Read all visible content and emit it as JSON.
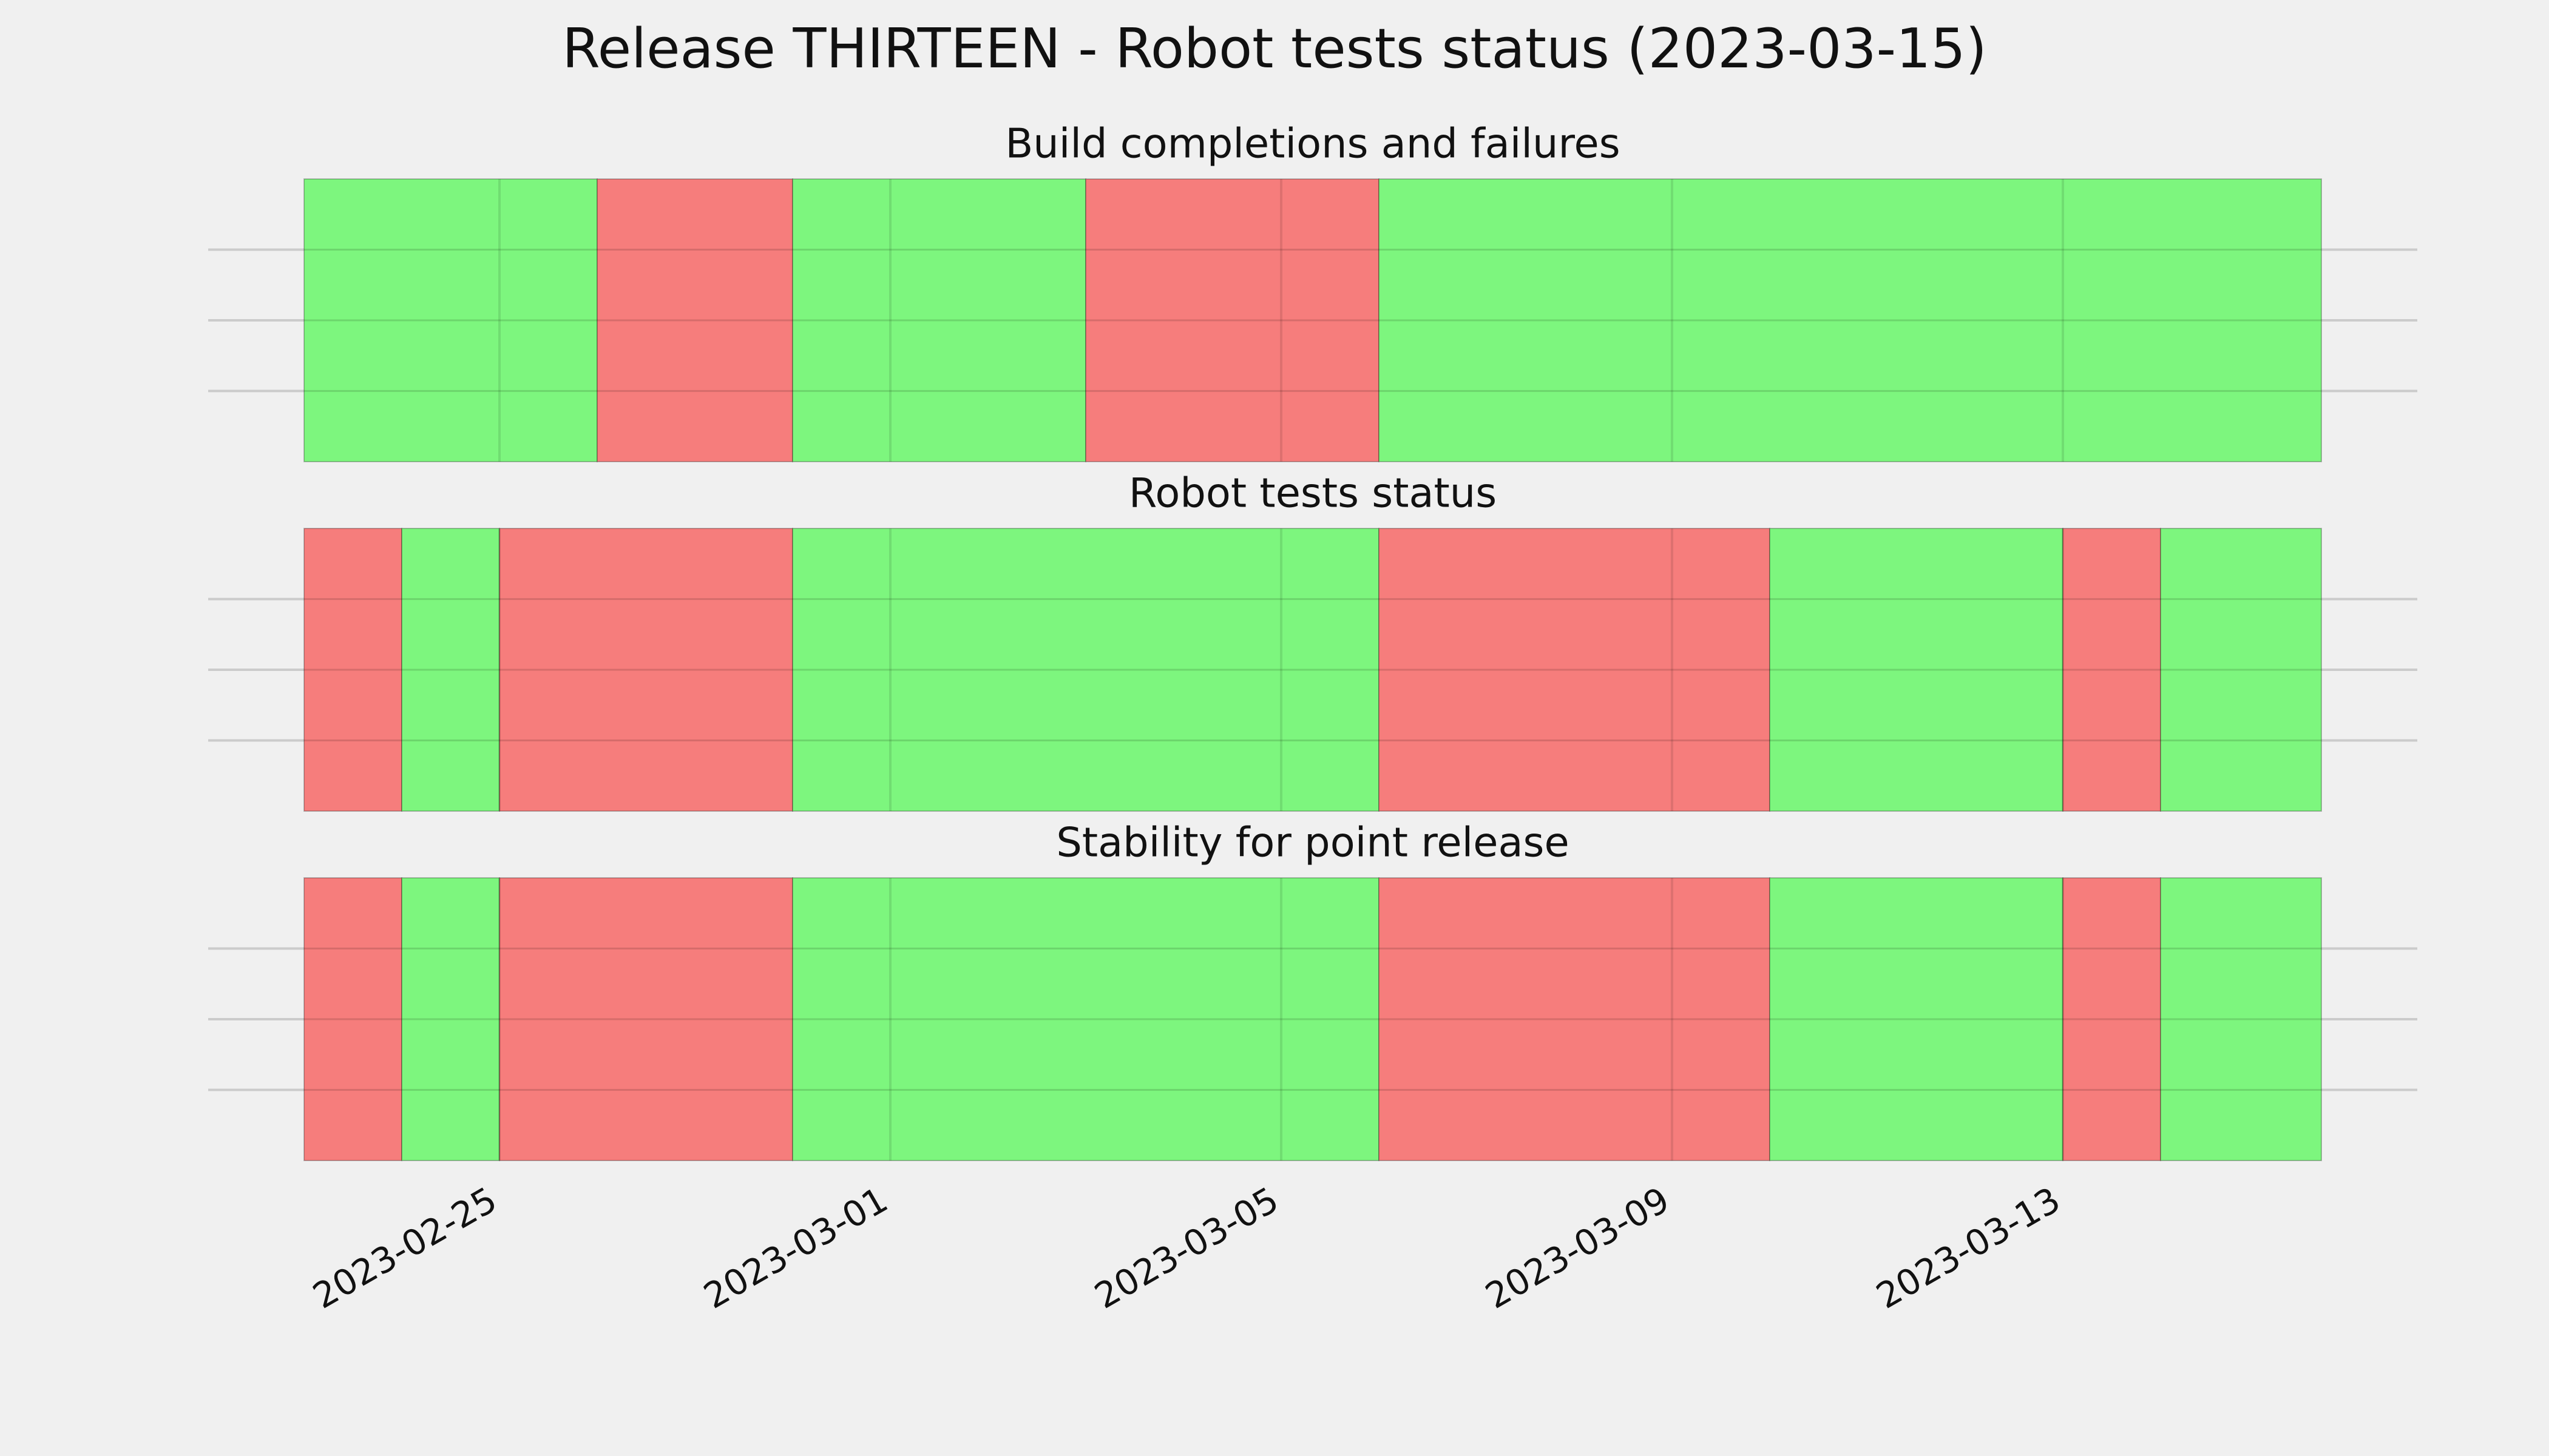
{
  "chart_data": {
    "type": "timeline",
    "title": "Release THIRTEEN - Robot tests status (2023-03-15)",
    "xlim": [
      "2023-02-23",
      "2023-03-15 15:30"
    ],
    "xticks": [
      "2023-02-25",
      "2023-03-01",
      "2023-03-05",
      "2023-03-09",
      "2023-03-13"
    ],
    "ylim": [
      0,
      1
    ],
    "yticks": [
      0.25,
      0.5,
      0.75
    ],
    "grid": true,
    "panels": [
      {
        "title": "Build completions and failures",
        "spans": [
          {
            "start": "2023-02-23",
            "end": "2023-02-26",
            "color": "#76f577"
          },
          {
            "start": "2023-02-26",
            "end": "2023-02-28",
            "color": "#f67675"
          },
          {
            "start": "2023-02-28",
            "end": "2023-03-03",
            "color": "#76f577"
          },
          {
            "start": "2023-03-03",
            "end": "2023-03-06",
            "color": "#f67675"
          },
          {
            "start": "2023-03-06",
            "end": "2023-03-15 15:30",
            "color": "#76f577"
          }
        ]
      },
      {
        "title": "Robot tests status",
        "spans": [
          {
            "start": "2023-02-23",
            "end": "2023-02-24",
            "color": "#f67675"
          },
          {
            "start": "2023-02-24",
            "end": "2023-02-25",
            "color": "#76f577"
          },
          {
            "start": "2023-02-25",
            "end": "2023-02-28",
            "color": "#f67675"
          },
          {
            "start": "2023-02-28",
            "end": "2023-03-06",
            "color": "#76f577"
          },
          {
            "start": "2023-03-06",
            "end": "2023-03-10",
            "color": "#f67675"
          },
          {
            "start": "2023-03-10",
            "end": "2023-03-13",
            "color": "#76f577"
          },
          {
            "start": "2023-03-13",
            "end": "2023-03-14",
            "color": "#f67675"
          },
          {
            "start": "2023-03-14",
            "end": "2023-03-15 15:30",
            "color": "#76f577"
          }
        ]
      },
      {
        "title": "Stability for point release",
        "spans": [
          {
            "start": "2023-02-23",
            "end": "2023-02-24",
            "color": "#f67675"
          },
          {
            "start": "2023-02-24",
            "end": "2023-02-25",
            "color": "#76f577"
          },
          {
            "start": "2023-02-25",
            "end": "2023-02-28",
            "color": "#f67675"
          },
          {
            "start": "2023-02-28",
            "end": "2023-03-06",
            "color": "#76f577"
          },
          {
            "start": "2023-03-06",
            "end": "2023-03-10",
            "color": "#f67675"
          },
          {
            "start": "2023-03-10",
            "end": "2023-03-13",
            "color": "#76f577"
          },
          {
            "start": "2023-03-13",
            "end": "2023-03-14",
            "color": "#f67675"
          },
          {
            "start": "2023-03-14",
            "end": "2023-03-15 15:30",
            "color": "#76f577"
          }
        ]
      }
    ]
  }
}
